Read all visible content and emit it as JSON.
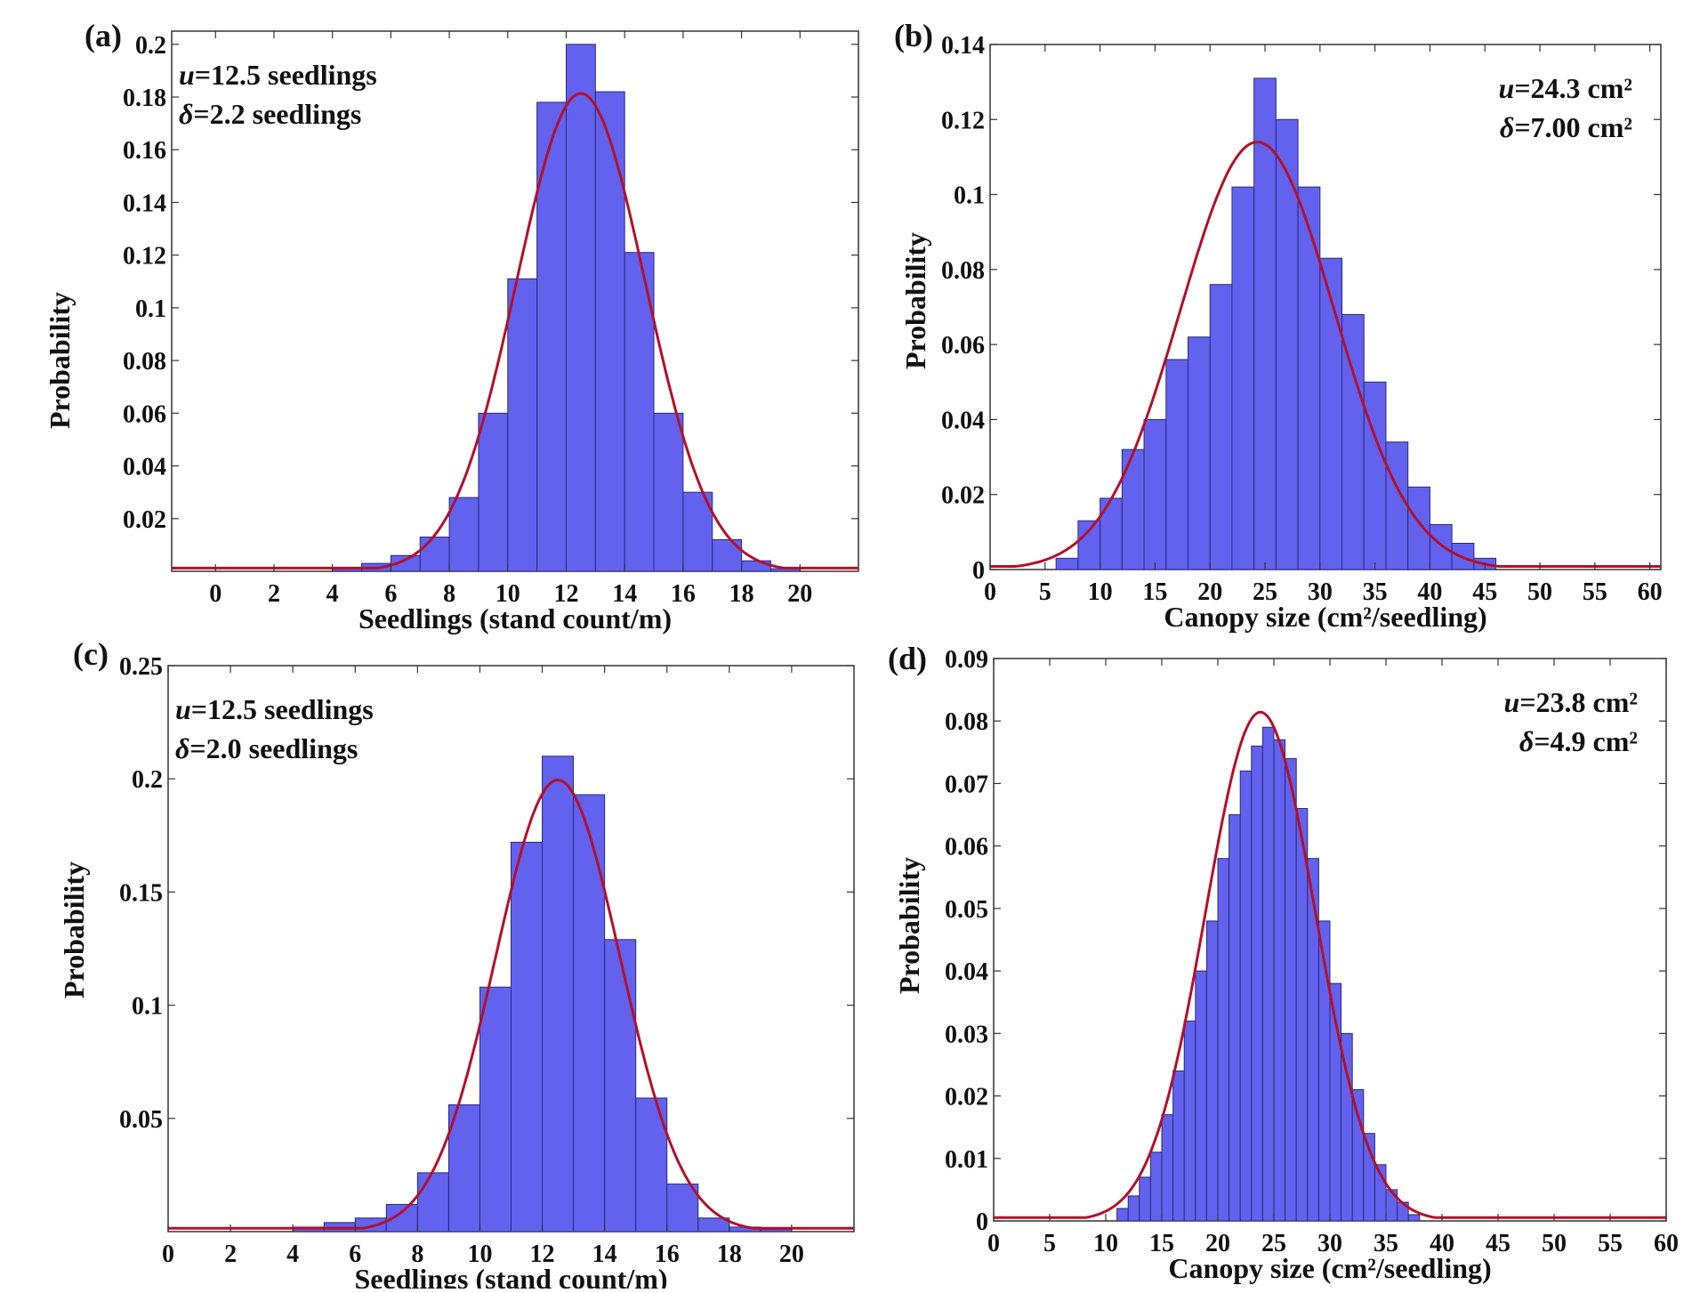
{
  "figure": {
    "panels": [
      "(a)",
      "(b)",
      "(c)",
      "(d)"
    ]
  },
  "chart_data": [
    {
      "id": "a",
      "type": "bar",
      "panel_label": "(a)",
      "xlabel": "Seedlings (stand count/m)",
      "ylabel": "Probability",
      "xlim": [
        -1.5,
        22
      ],
      "ylim": [
        0,
        0.205
      ],
      "xticks": [
        0,
        2,
        4,
        6,
        8,
        10,
        12,
        14,
        16,
        18,
        20
      ],
      "yticks": [
        0.02,
        0.04,
        0.06,
        0.08,
        0.1,
        0.12,
        0.14,
        0.16,
        0.18,
        0.2
      ],
      "ytick_labels": [
        "0.02",
        "0.04",
        "0.06",
        "0.08",
        "0.1",
        "0.12",
        "0.14",
        "0.16",
        "0.18",
        "0.2"
      ],
      "bin_edges": [
        4,
        5,
        6,
        7,
        8,
        9,
        10,
        11,
        12,
        13,
        14,
        15,
        16,
        17,
        18,
        19,
        20
      ],
      "values": [
        0.001,
        0.003,
        0.006,
        0.013,
        0.028,
        0.06,
        0.111,
        0.178,
        0.2,
        0.182,
        0.121,
        0.06,
        0.03,
        0.012,
        0.004,
        0.001
      ],
      "fit": {
        "type": "normal",
        "mean": 12.5,
        "sd": 2.2
      },
      "annotation": [
        "u=12.5 seedlings",
        "δ=2.2 seedlings"
      ],
      "annotation_position": "top-left"
    },
    {
      "id": "b",
      "type": "bar",
      "panel_label": "(b)",
      "xlabel": "Canopy size (cm²/seedling)",
      "ylabel": "Probability",
      "xlim": [
        0,
        61
      ],
      "ylim": [
        0,
        0.14
      ],
      "xticks": [
        0,
        5,
        10,
        15,
        20,
        25,
        30,
        35,
        40,
        45,
        50,
        55,
        60
      ],
      "yticks": [
        0,
        0.02,
        0.04,
        0.06,
        0.08,
        0.1,
        0.12,
        0.14
      ],
      "ytick_labels": [
        "0",
        "0.02",
        "0.04",
        "0.06",
        "0.08",
        "0.1",
        "0.12",
        "0.14"
      ],
      "bin_edges": [
        6,
        8,
        10,
        12,
        14,
        16,
        18,
        20,
        22,
        24,
        26,
        28,
        30,
        32,
        34,
        36,
        38,
        40,
        42,
        44,
        46
      ],
      "values": [
        0.003,
        0.013,
        0.019,
        0.032,
        0.04,
        0.056,
        0.062,
        0.076,
        0.102,
        0.131,
        0.12,
        0.102,
        0.083,
        0.068,
        0.05,
        0.034,
        0.022,
        0.012,
        0.007,
        0.003
      ],
      "fit": {
        "type": "normal",
        "mean": 24.3,
        "sd": 7.0
      },
      "annotation": [
        "u=24.3 cm²",
        "δ=7.00 cm²"
      ],
      "annotation_position": "top-right"
    },
    {
      "id": "c",
      "type": "bar",
      "panel_label": "(c)",
      "xlabel": "Seedlings (stand count/m)",
      "ylabel": "Probability",
      "xlim": [
        0,
        22
      ],
      "ylim": [
        0,
        0.25
      ],
      "xticks": [
        0,
        2,
        4,
        6,
        8,
        10,
        12,
        14,
        16,
        18,
        20
      ],
      "yticks": [
        0.05,
        0.1,
        0.15,
        0.2,
        0.25
      ],
      "ytick_labels": [
        "0.05",
        "0.1",
        "0.15",
        "0.2",
        "0.25"
      ],
      "bin_edges": [
        4,
        5,
        6,
        7,
        8,
        9,
        10,
        11,
        12,
        13,
        14,
        15,
        16,
        17,
        18,
        19,
        20
      ],
      "values": [
        0.002,
        0.004,
        0.006,
        0.012,
        0.026,
        0.056,
        0.108,
        0.172,
        0.21,
        0.193,
        0.129,
        0.059,
        0.021,
        0.006,
        0.002,
        0.001
      ],
      "fit": {
        "type": "normal",
        "mean": 12.5,
        "sd": 2.0
      },
      "annotation": [
        "u=12.5 seedlings",
        "δ=2.0 seedlings"
      ],
      "annotation_position": "top-left"
    },
    {
      "id": "d",
      "type": "bar",
      "panel_label": "(d)",
      "xlabel": "Canopy size (cm²/seedling)",
      "ylabel": "Probability",
      "xlim": [
        0,
        60
      ],
      "ylim": [
        0,
        0.09
      ],
      "xticks": [
        0,
        5,
        10,
        15,
        20,
        25,
        30,
        35,
        40,
        45,
        50,
        55,
        60
      ],
      "yticks": [
        0,
        0.01,
        0.02,
        0.03,
        0.04,
        0.05,
        0.06,
        0.07,
        0.08,
        0.09
      ],
      "ytick_labels": [
        "0",
        "0.01",
        "0.02",
        "0.03",
        "0.04",
        "0.05",
        "0.06",
        "0.07",
        "0.08",
        "0.09"
      ],
      "bin_edges": [
        11,
        12,
        13,
        14,
        15,
        16,
        17,
        18,
        19,
        20,
        21,
        22,
        23,
        24,
        25,
        26,
        27,
        28,
        29,
        30,
        31,
        32,
        33,
        34,
        35,
        36,
        37,
        38
      ],
      "values": [
        0.002,
        0.004,
        0.007,
        0.011,
        0.017,
        0.024,
        0.032,
        0.04,
        0.048,
        0.058,
        0.065,
        0.072,
        0.076,
        0.079,
        0.077,
        0.074,
        0.066,
        0.058,
        0.048,
        0.038,
        0.03,
        0.021,
        0.014,
        0.009,
        0.005,
        0.003,
        0.001
      ],
      "fit": {
        "type": "normal",
        "mean": 23.8,
        "sd": 4.9
      },
      "annotation": [
        "u=23.8 cm²",
        "δ=4.9 cm²"
      ],
      "annotation_position": "top-right"
    }
  ]
}
